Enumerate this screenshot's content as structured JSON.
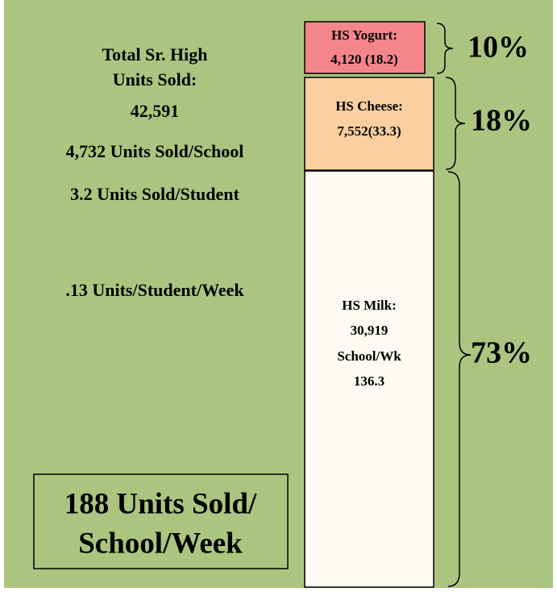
{
  "summary": {
    "lines": [
      "Total Sr. High",
      "Units Sold:",
      "42,591",
      "4,732 Units Sold/School",
      "3.2 Units Sold/Student",
      ".13 Units/Student/Week"
    ]
  },
  "callout": {
    "lines": [
      "188 Units Sold/",
      "School/Week"
    ]
  },
  "segments": [
    {
      "lines": [
        "HS Yogurt:",
        "4,120 (18.2)"
      ],
      "share": "10%"
    },
    {
      "lines": [
        "HS Cheese:",
        "7,552(33.3)"
      ],
      "share": "18%"
    },
    {
      "lines": [
        "HS Milk:",
        "30,919",
        "School/Wk",
        "136.3"
      ],
      "share": "73%"
    }
  ]
}
